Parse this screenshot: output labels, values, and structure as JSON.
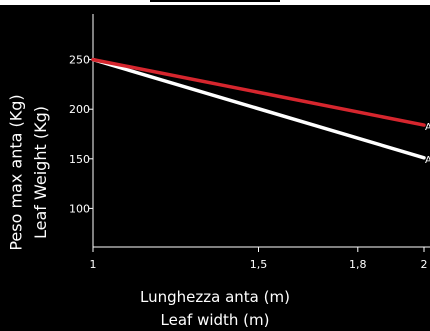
{
  "chart_data": {
    "type": "line",
    "title": "",
    "xlabel_lines": [
      "Lunghezza anta (m)",
      "Leaf width (m)"
    ],
    "ylabel_lines": [
      "Peso max anta (Kg)",
      "Leaf Weight (Kg)"
    ],
    "x_tick_labels": [
      "1",
      "1,5",
      "1,8",
      "2"
    ],
    "x_tick_values": [
      1,
      1.5,
      1.8,
      2
    ],
    "y_tick_labels": [
      "250",
      "200",
      "150",
      "100"
    ],
    "y_tick_values": [
      250,
      200,
      150,
      100
    ],
    "xlim": [
      1,
      2
    ],
    "ylim": [
      50,
      300
    ],
    "grid": false,
    "series": [
      {
        "color": "#d6262e",
        "end_label": "A",
        "x": [
          1,
          2
        ],
        "y": [
          250,
          184
        ]
      },
      {
        "color": "#ffffff",
        "end_label": "A",
        "x": [
          1,
          2
        ],
        "y": [
          250,
          151
        ]
      }
    ]
  }
}
